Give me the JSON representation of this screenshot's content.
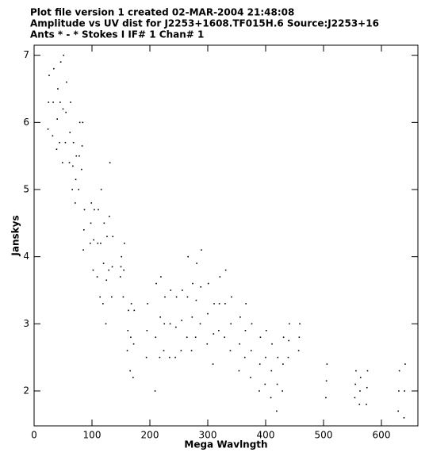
{
  "chart_data": {
    "type": "scatter",
    "title_lines": [
      "Plot file version 1  created 02-MAR-2004 21:48:08",
      "Amplitude vs UV dist for J2253+1608.TF015H.6   Source:J2253+16",
      "Ants * - *    Stokes I  IF# 1  Chan# 1"
    ],
    "x_label": "Mega Wavlngth",
    "y_label": "Janskys",
    "color": "#000000",
    "xlim": [
      0,
      663
    ],
    "ylim": [
      1.48,
      7.15
    ],
    "xticks": [
      0,
      100,
      200,
      300,
      400,
      500,
      600
    ],
    "yticks": [
      2,
      3,
      4,
      5,
      6,
      7
    ],
    "x": [
      24,
      25,
      26,
      32,
      33,
      34,
      39,
      40,
      41,
      44,
      45,
      46,
      49,
      50,
      51,
      54,
      55,
      56,
      61,
      62,
      63,
      66,
      67,
      68,
      71,
      72,
      73,
      77,
      78,
      79,
      82,
      83,
      84,
      85,
      86,
      87,
      97,
      98,
      99,
      102,
      103,
      104,
      109,
      110,
      111,
      114,
      115,
      116,
      119,
      120,
      121,
      124,
      125,
      126,
      129,
      130,
      131,
      134,
      135,
      136,
      149,
      150,
      151,
      154,
      155,
      156,
      161,
      162,
      163,
      166,
      167,
      168,
      171,
      172,
      173,
      194,
      195,
      196,
      209,
      210,
      211,
      217,
      218,
      219,
      224,
      225,
      226,
      234,
      235,
      236,
      244,
      245,
      246,
      254,
      255,
      256,
      264,
      265,
      266,
      272,
      273,
      274,
      279,
      280,
      281,
      287,
      288,
      289,
      299,
      300,
      301,
      309,
      310,
      311,
      319,
      320,
      321,
      329,
      330,
      331,
      339,
      340,
      341,
      354,
      355,
      356,
      364,
      365,
      366,
      374,
      375,
      376,
      389,
      390,
      391,
      399,
      400,
      401,
      409,
      410,
      411,
      419,
      420,
      421,
      429,
      430,
      431,
      439,
      440,
      441,
      457,
      458,
      459,
      504,
      505,
      506,
      554,
      555,
      556,
      562,
      563,
      564,
      574,
      575,
      576,
      629,
      630,
      631,
      639,
      640,
      641
    ],
    "y": [
      5.9,
      6.3,
      6.7,
      5.8,
      6.3,
      6.8,
      5.6,
      6.05,
      6.5,
      5.7,
      6.3,
      6.9,
      5.4,
      6.2,
      7.0,
      5.7,
      6.15,
      6.6,
      5.4,
      5.85,
      6.3,
      5.0,
      5.35,
      5.7,
      4.8,
      5.15,
      5.5,
      5.0,
      5.5,
      6.0,
      5.3,
      5.65,
      6.0,
      4.1,
      4.4,
      4.7,
      4.2,
      4.5,
      4.8,
      3.8,
      4.25,
      4.7,
      3.7,
      4.2,
      4.7,
      3.4,
      4.2,
      5.0,
      3.3,
      3.9,
      4.5,
      3.0,
      3.65,
      4.3,
      3.8,
      4.6,
      5.4,
      3.4,
      3.85,
      4.3,
      3.7,
      3.85,
      4.0,
      3.4,
      3.8,
      4.2,
      2.6,
      2.9,
      3.2,
      2.3,
      2.8,
      3.3,
      2.2,
      2.7,
      3.2,
      2.5,
      2.9,
      3.3,
      2.0,
      2.8,
      3.6,
      2.5,
      3.1,
      3.7,
      2.6,
      3.0,
      3.4,
      2.5,
      3.0,
      3.5,
      2.5,
      2.95,
      3.4,
      2.6,
      3.05,
      3.5,
      2.8,
      3.4,
      4.0,
      2.6,
      3.1,
      3.6,
      2.8,
      3.35,
      3.9,
      3.0,
      3.55,
      4.1,
      2.7,
      3.15,
      3.6,
      2.4,
      2.85,
      3.3,
      2.9,
      3.3,
      3.7,
      2.8,
      3.3,
      3.8,
      2.6,
      3.0,
      3.4,
      2.3,
      2.7,
      3.1,
      2.5,
      2.9,
      3.3,
      2.2,
      2.6,
      3.0,
      2.0,
      2.4,
      2.8,
      2.1,
      2.5,
      2.9,
      1.9,
      2.3,
      2.7,
      1.7,
      2.1,
      2.5,
      2.0,
      2.4,
      2.8,
      2.5,
      2.75,
      3.0,
      2.6,
      2.8,
      3.0,
      1.9,
      2.15,
      2.4,
      1.9,
      2.1,
      2.3,
      1.8,
      2.0,
      2.2,
      1.8,
      2.05,
      2.3,
      1.7,
      2.0,
      2.3,
      1.6,
      2.0,
      2.4
    ]
  }
}
